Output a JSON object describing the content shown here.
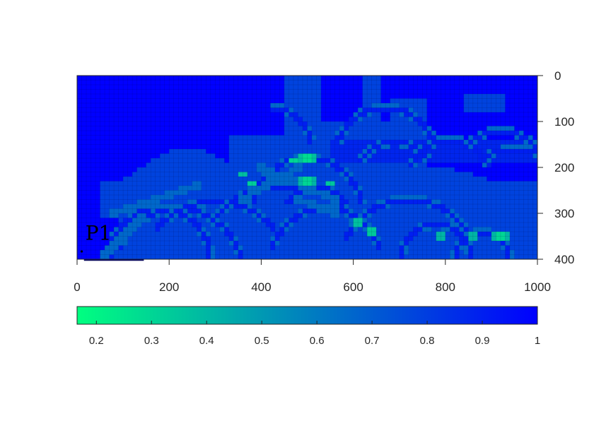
{
  "chart_data": {
    "type": "heatmap",
    "title": "",
    "xlabel": "",
    "ylabel": "",
    "x_ticks": [
      0,
      200,
      400,
      600,
      800,
      1000
    ],
    "y_ticks": [
      0,
      100,
      200,
      300,
      400
    ],
    "xlim": [
      0,
      1000
    ],
    "ylim": [
      0,
      400
    ],
    "y_axis_location": "right",
    "y_reversed": true,
    "grid": true,
    "grid_spacing": 10,
    "colormap": {
      "name": "winter",
      "low_color": "#00ff80",
      "high_color": "#0000ff",
      "range": [
        0.165,
        1
      ]
    },
    "colorbar": {
      "location": "below",
      "ticks": [
        0.2,
        0.3,
        0.4,
        0.5,
        0.6,
        0.7,
        0.8,
        0.9,
        1
      ]
    },
    "levels": {
      "background": 1.0,
      "body": 0.78,
      "arc": 0.66,
      "band": 0.88,
      "hot": 0.17
    },
    "body_regions": [
      {
        "x": [
          50,
          210
        ],
        "y": [
          280,
          400
        ],
        "peak": 340,
        "base": 220
      },
      {
        "x": [
          100,
          380
        ],
        "y": [
          160,
          400
        ],
        "peak": 300,
        "base": 240
      },
      {
        "x": [
          230,
          330
        ],
        "y": [
          225,
          400
        ]
      },
      {
        "x": [
          330,
          560
        ],
        "y": [
          130,
          400
        ]
      },
      {
        "x": [
          540,
          1000
        ],
        "y": [
          200,
          400
        ],
        "peak": 560,
        "base": 300
      },
      {
        "x": [
          470,
          700
        ],
        "y": [
          100,
          400
        ]
      },
      {
        "x": [
          450,
          530
        ],
        "y": [
          0,
          160
        ]
      },
      {
        "x": [
          620,
          660
        ],
        "y": [
          0,
          120
        ]
      },
      {
        "x": [
          680,
          760
        ],
        "y": [
          50,
          270
        ]
      },
      {
        "x": [
          860,
          1000
        ],
        "y": [
          230,
          380
        ]
      },
      {
        "x": [
          840,
          930
        ],
        "y": [
          40,
          80
        ]
      }
    ],
    "background_regions": [
      {
        "x": [
          0,
          100
        ],
        "y": [
          0,
          230
        ]
      },
      {
        "x": [
          0,
          60
        ],
        "y": [
          320,
          400
        ]
      },
      {
        "x": [
          940,
          1000
        ],
        "y": [
          40,
          230
        ]
      },
      {
        "x": [
          20,
          90
        ],
        "y": [
          310,
          370
        ]
      }
    ],
    "arcs": [
      {
        "cx": 180,
        "cy": 400,
        "r": 110,
        "a0": 0,
        "a1": 180
      },
      {
        "cx": 220,
        "cy": 430,
        "r": 140,
        "a0": 10,
        "a1": 160
      },
      {
        "cx": 300,
        "cy": 440,
        "r": 165,
        "a0": 40,
        "a1": 140
      },
      {
        "cx": 450,
        "cy": 440,
        "r": 200,
        "a0": 35,
        "a1": 145
      },
      {
        "cx": 500,
        "cy": 300,
        "r": 120,
        "a0": 10,
        "a1": 170
      },
      {
        "cx": 520,
        "cy": 320,
        "r": 75,
        "a0": 30,
        "a1": 150
      },
      {
        "cx": 540,
        "cy": 410,
        "r": 120,
        "a0": 15,
        "a1": 165
      },
      {
        "cx": 720,
        "cy": 420,
        "r": 150,
        "a0": 25,
        "a1": 155
      },
      {
        "cx": 780,
        "cy": 400,
        "r": 75,
        "a0": 0,
        "a1": 180
      },
      {
        "cx": 880,
        "cy": 400,
        "r": 60,
        "a0": 0,
        "a1": 180
      },
      {
        "cx": 670,
        "cy": 180,
        "r": 110,
        "a0": 20,
        "a1": 160
      },
      {
        "cx": 690,
        "cy": 230,
        "r": 85,
        "a0": 30,
        "a1": 150
      },
      {
        "cx": 810,
        "cy": 230,
        "r": 90,
        "a0": 20,
        "a1": 160
      },
      {
        "cx": 920,
        "cy": 220,
        "r": 100,
        "a0": 40,
        "a1": 140
      },
      {
        "cx": 950,
        "cy": 280,
        "r": 120,
        "a0": 50,
        "a1": 130
      },
      {
        "cx": 420,
        "cy": 160,
        "r": 90,
        "a0": 10,
        "a1": 90
      }
    ],
    "crossings": [
      {
        "x1": 400,
        "y1": 200,
        "x2": 560,
        "y2": 270
      },
      {
        "x1": 360,
        "y1": 270,
        "x2": 480,
        "y2": 200
      },
      {
        "x1": 60,
        "y1": 390,
        "x2": 140,
        "y2": 310
      },
      {
        "x1": 75,
        "y1": 300,
        "x2": 265,
        "y2": 240
      },
      {
        "x1": 480,
        "y1": 270,
        "x2": 560,
        "y2": 300
      }
    ],
    "upper_band": {
      "x": [
        555,
        1000
      ],
      "y": [
        140,
        190
      ]
    },
    "hot_spots": [
      {
        "x": 500,
        "y": 180,
        "r": 22
      },
      {
        "x": 500,
        "y": 230,
        "r": 18
      },
      {
        "x": 470,
        "y": 185,
        "r": 10
      },
      {
        "x": 640,
        "y": 340,
        "r": 14
      },
      {
        "x": 610,
        "y": 320,
        "r": 12
      },
      {
        "x": 790,
        "y": 350,
        "r": 10
      },
      {
        "x": 920,
        "y": 350,
        "r": 18
      },
      {
        "x": 860,
        "y": 350,
        "r": 10
      },
      {
        "x": 200,
        "y": 310,
        "r": 9
      },
      {
        "x": 240,
        "y": 280,
        "r": 7
      },
      {
        "x": 550,
        "y": 235,
        "r": 7
      },
      {
        "x": 380,
        "y": 235,
        "r": 8
      },
      {
        "x": 360,
        "y": 215,
        "r": 6
      },
      {
        "x": 460,
        "y": 120,
        "r": 6
      },
      {
        "x": 780,
        "y": 70,
        "r": 6
      },
      {
        "x": 720,
        "y": 200,
        "r": 6
      }
    ],
    "annotations": [
      {
        "text": "P1",
        "x": 15,
        "y": 385
      }
    ]
  }
}
